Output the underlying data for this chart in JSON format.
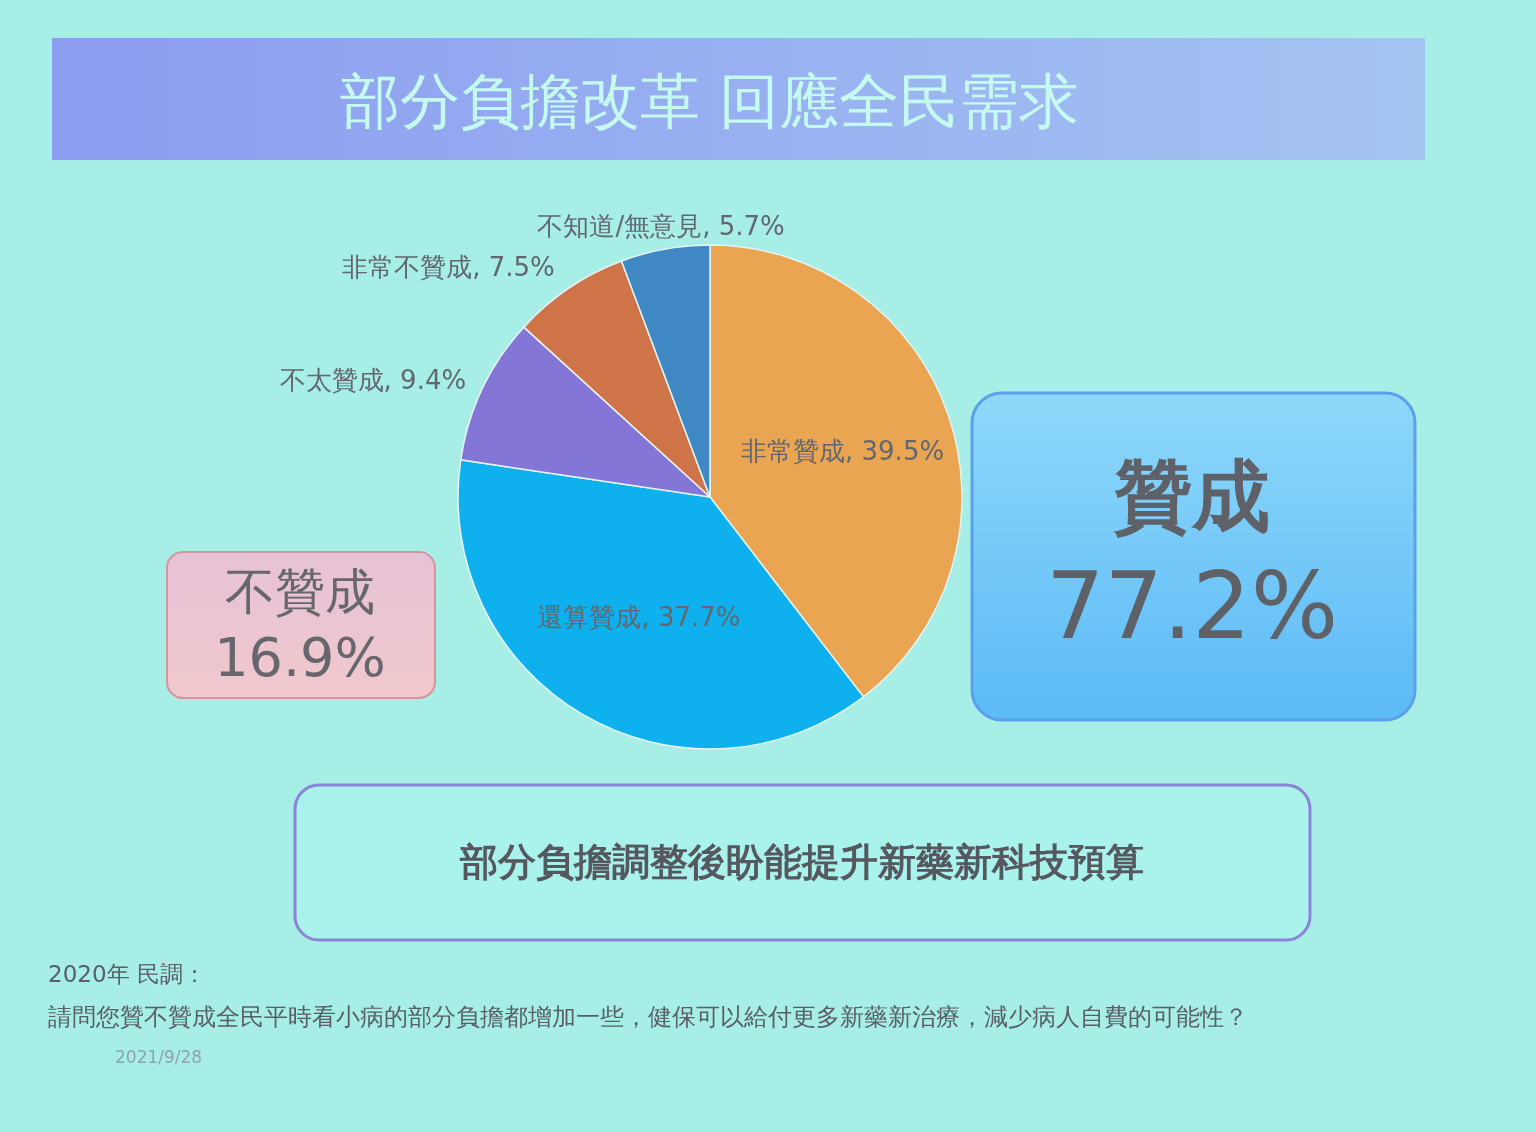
{
  "chart_data": {
    "type": "pie",
    "title": "部分負擔改革 回應全民需求",
    "categories": [
      "非常贊成",
      "還算贊成",
      "不太贊成",
      "非常不贊成",
      "不知道/無意見"
    ],
    "values": [
      39.5,
      37.7,
      9.4,
      7.5,
      5.7
    ],
    "colors": [
      "#e9a552",
      "#0eb0ee",
      "#8476d6",
      "#cf7448",
      "#3f88c4"
    ],
    "value_labels": [
      "39.5%",
      "37.7%",
      "9.4%",
      "7.5%",
      "5.7%"
    ],
    "annotations": [
      "不贊成",
      "16.9%",
      "贊成",
      "77.2%",
      "部分負擔調整後盼能提升新藥新科技預算",
      "2020年 民調：",
      "請問您贊不贊成全民平時看小病的部分負擔都增加一些，健保可以給付更多新藥新治療，減少病人自費的可能性？",
      "2021/9/28"
    ]
  }
}
